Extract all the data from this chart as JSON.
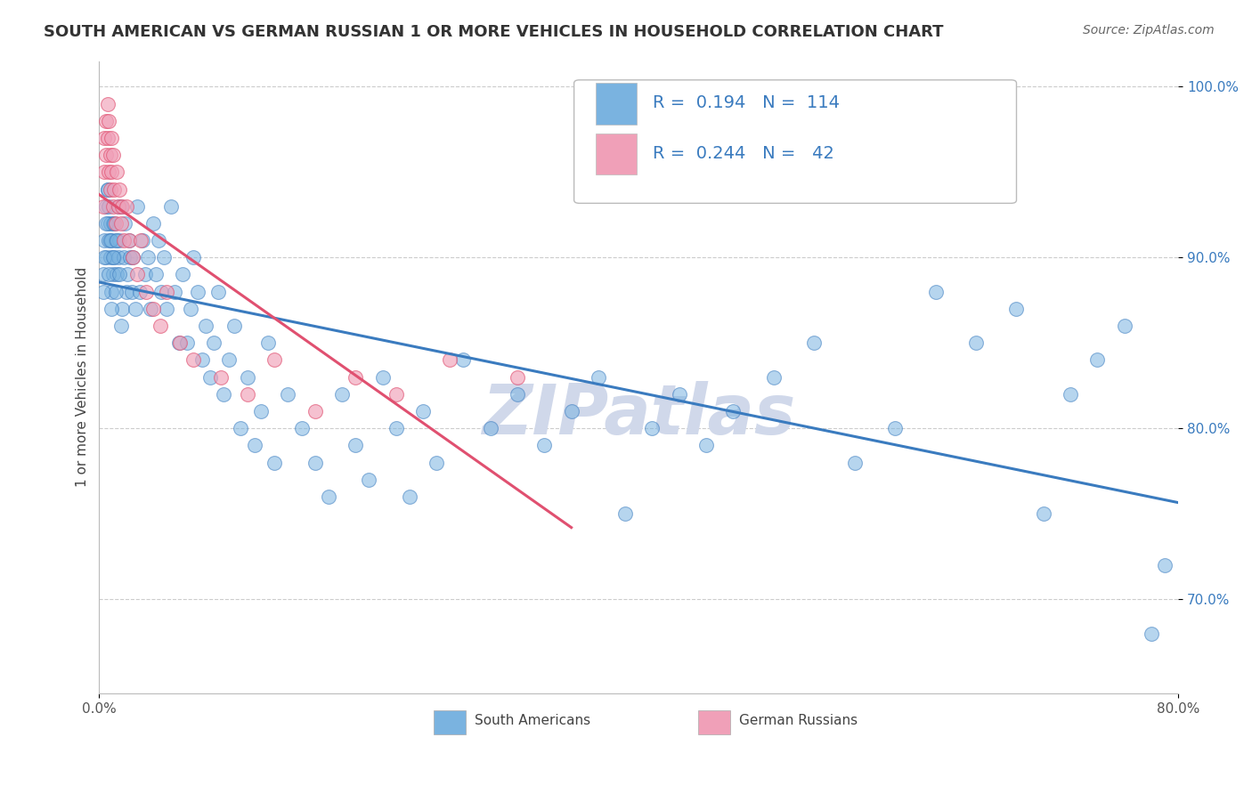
{
  "title": "SOUTH AMERICAN VS GERMAN RUSSIAN 1 OR MORE VEHICLES IN HOUSEHOLD CORRELATION CHART",
  "source": "Source: ZipAtlas.com",
  "ylabel": "1 or more Vehicles in Household",
  "xmin": 0.0,
  "xmax": 0.8,
  "ymin": 0.645,
  "ymax": 1.015,
  "blue_R": 0.194,
  "blue_N": 114,
  "pink_R": 0.244,
  "pink_N": 42,
  "ytick_values": [
    0.7,
    0.8,
    0.9,
    1.0
  ],
  "ytick_labels": [
    "70.0%",
    "80.0%",
    "90.0%",
    "100.0%"
  ],
  "grid_color": "#cccccc",
  "blue_color": "#7ab3e0",
  "pink_color": "#f0a0b8",
  "blue_line_color": "#3a7bbf",
  "pink_line_color": "#e05070",
  "watermark_color": "#d0d8ea",
  "blue_scatter_x": [
    0.003,
    0.004,
    0.005,
    0.005,
    0.006,
    0.006,
    0.007,
    0.007,
    0.008,
    0.008,
    0.009,
    0.009,
    0.01,
    0.01,
    0.011,
    0.012,
    0.013,
    0.014,
    0.015,
    0.016,
    0.017,
    0.018,
    0.019,
    0.02,
    0.021,
    0.022,
    0.023,
    0.024,
    0.025,
    0.027,
    0.028,
    0.03,
    0.032,
    0.034,
    0.036,
    0.038,
    0.04,
    0.042,
    0.044,
    0.046,
    0.048,
    0.05,
    0.053,
    0.056,
    0.059,
    0.062,
    0.065,
    0.068,
    0.07,
    0.073,
    0.076,
    0.079,
    0.082,
    0.085,
    0.088,
    0.092,
    0.096,
    0.1,
    0.105,
    0.11,
    0.115,
    0.12,
    0.125,
    0.13,
    0.14,
    0.15,
    0.16,
    0.17,
    0.18,
    0.19,
    0.2,
    0.21,
    0.22,
    0.23,
    0.24,
    0.25,
    0.27,
    0.29,
    0.31,
    0.33,
    0.35,
    0.37,
    0.39,
    0.41,
    0.43,
    0.45,
    0.47,
    0.5,
    0.53,
    0.56,
    0.59,
    0.62,
    0.65,
    0.68,
    0.7,
    0.72,
    0.74,
    0.76,
    0.78,
    0.79,
    0.003,
    0.004,
    0.005,
    0.006,
    0.007,
    0.008,
    0.009,
    0.01,
    0.011,
    0.012,
    0.013,
    0.014,
    0.015,
    0.016
  ],
  "blue_scatter_y": [
    0.89,
    0.91,
    0.93,
    0.9,
    0.92,
    0.94,
    0.91,
    0.93,
    0.9,
    0.92,
    0.88,
    0.91,
    0.89,
    0.92,
    0.9,
    0.91,
    0.89,
    0.9,
    0.91,
    0.93,
    0.87,
    0.9,
    0.92,
    0.88,
    0.89,
    0.91,
    0.9,
    0.88,
    0.9,
    0.87,
    0.93,
    0.88,
    0.91,
    0.89,
    0.9,
    0.87,
    0.92,
    0.89,
    0.91,
    0.88,
    0.9,
    0.87,
    0.93,
    0.88,
    0.85,
    0.89,
    0.85,
    0.87,
    0.9,
    0.88,
    0.84,
    0.86,
    0.83,
    0.85,
    0.88,
    0.82,
    0.84,
    0.86,
    0.8,
    0.83,
    0.79,
    0.81,
    0.85,
    0.78,
    0.82,
    0.8,
    0.78,
    0.76,
    0.82,
    0.79,
    0.77,
    0.83,
    0.8,
    0.76,
    0.81,
    0.78,
    0.84,
    0.8,
    0.82,
    0.79,
    0.81,
    0.83,
    0.75,
    0.8,
    0.82,
    0.79,
    0.81,
    0.83,
    0.85,
    0.78,
    0.8,
    0.88,
    0.85,
    0.87,
    0.75,
    0.82,
    0.84,
    0.86,
    0.68,
    0.72,
    0.88,
    0.9,
    0.92,
    0.94,
    0.89,
    0.91,
    0.87,
    0.9,
    0.92,
    0.88,
    0.91,
    0.93,
    0.89,
    0.86
  ],
  "pink_scatter_x": [
    0.003,
    0.004,
    0.004,
    0.005,
    0.005,
    0.006,
    0.006,
    0.007,
    0.007,
    0.008,
    0.008,
    0.009,
    0.009,
    0.01,
    0.01,
    0.011,
    0.012,
    0.013,
    0.014,
    0.015,
    0.016,
    0.017,
    0.018,
    0.02,
    0.022,
    0.025,
    0.028,
    0.031,
    0.035,
    0.04,
    0.045,
    0.05,
    0.06,
    0.07,
    0.09,
    0.11,
    0.13,
    0.16,
    0.19,
    0.22,
    0.26,
    0.31
  ],
  "pink_scatter_y": [
    0.93,
    0.97,
    0.95,
    0.98,
    0.96,
    0.99,
    0.97,
    0.95,
    0.98,
    0.96,
    0.94,
    0.97,
    0.95,
    0.93,
    0.96,
    0.94,
    0.92,
    0.95,
    0.93,
    0.94,
    0.92,
    0.93,
    0.91,
    0.93,
    0.91,
    0.9,
    0.89,
    0.91,
    0.88,
    0.87,
    0.86,
    0.88,
    0.85,
    0.84,
    0.83,
    0.82,
    0.84,
    0.81,
    0.83,
    0.82,
    0.84,
    0.83
  ]
}
